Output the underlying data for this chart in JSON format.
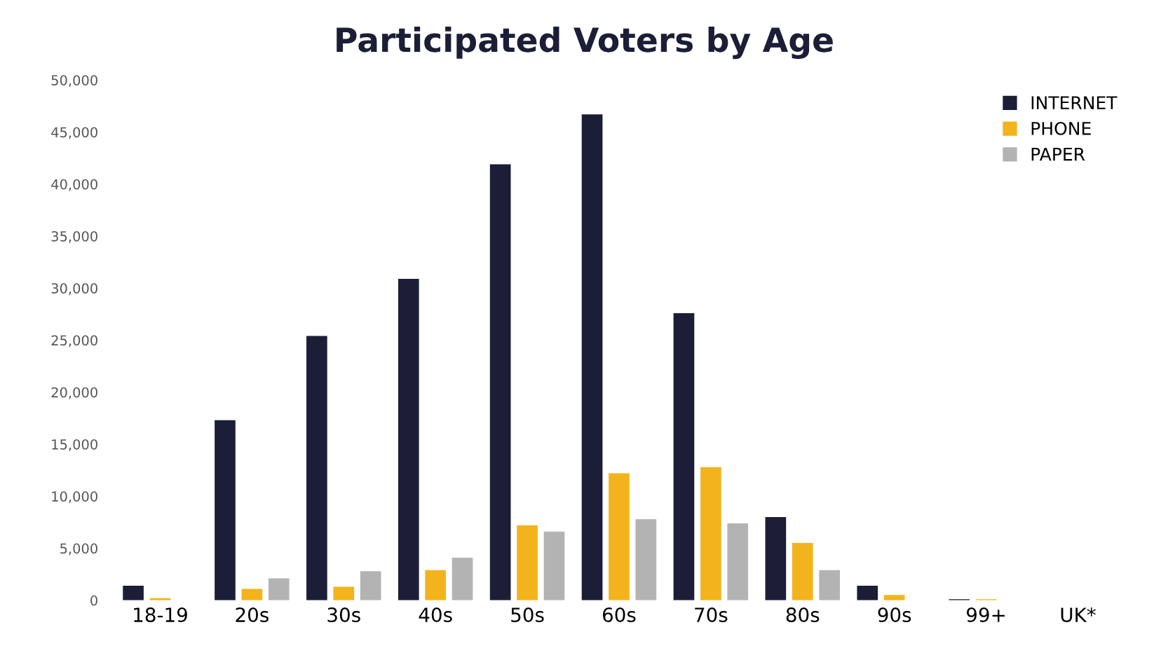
{
  "chart_data": {
    "type": "bar",
    "title": "Participated Voters by Age",
    "categories": [
      "18-19",
      "20s",
      "30s",
      "40s",
      "50s",
      "60s",
      "70s",
      "80s",
      "90s",
      "99+",
      "UK*"
    ],
    "series": [
      {
        "name": "INTERNET",
        "color": "#1b1e36",
        "values": [
          1400,
          17300,
          25400,
          30900,
          41900,
          46700,
          27600,
          8000,
          1400,
          100,
          0
        ]
      },
      {
        "name": "PHONE",
        "color": "#f2b31c",
        "values": [
          200,
          1100,
          1300,
          2900,
          7200,
          12200,
          12800,
          5500,
          500,
          100,
          0
        ]
      },
      {
        "name": "PAPER",
        "color": "#b3b3b3",
        "values": [
          null,
          2100,
          2800,
          4100,
          6600,
          7800,
          7400,
          2900,
          null,
          null,
          null
        ]
      }
    ],
    "ylim": [
      0,
      50000
    ],
    "yticks": [
      {
        "value": 0,
        "label": "0"
      },
      {
        "value": 5000,
        "label": "5,000"
      },
      {
        "value": 10000,
        "label": "10,000"
      },
      {
        "value": 15000,
        "label": "15,000"
      },
      {
        "value": 20000,
        "label": "20,000"
      },
      {
        "value": 25000,
        "label": "25,000"
      },
      {
        "value": 30000,
        "label": "30,000"
      },
      {
        "value": 35000,
        "label": "35,000"
      },
      {
        "value": 40000,
        "label": "40,000"
      },
      {
        "value": 45000,
        "label": "45,000"
      },
      {
        "value": 50000,
        "label": "50,000"
      }
    ],
    "grid": false,
    "legend": "top right"
  }
}
